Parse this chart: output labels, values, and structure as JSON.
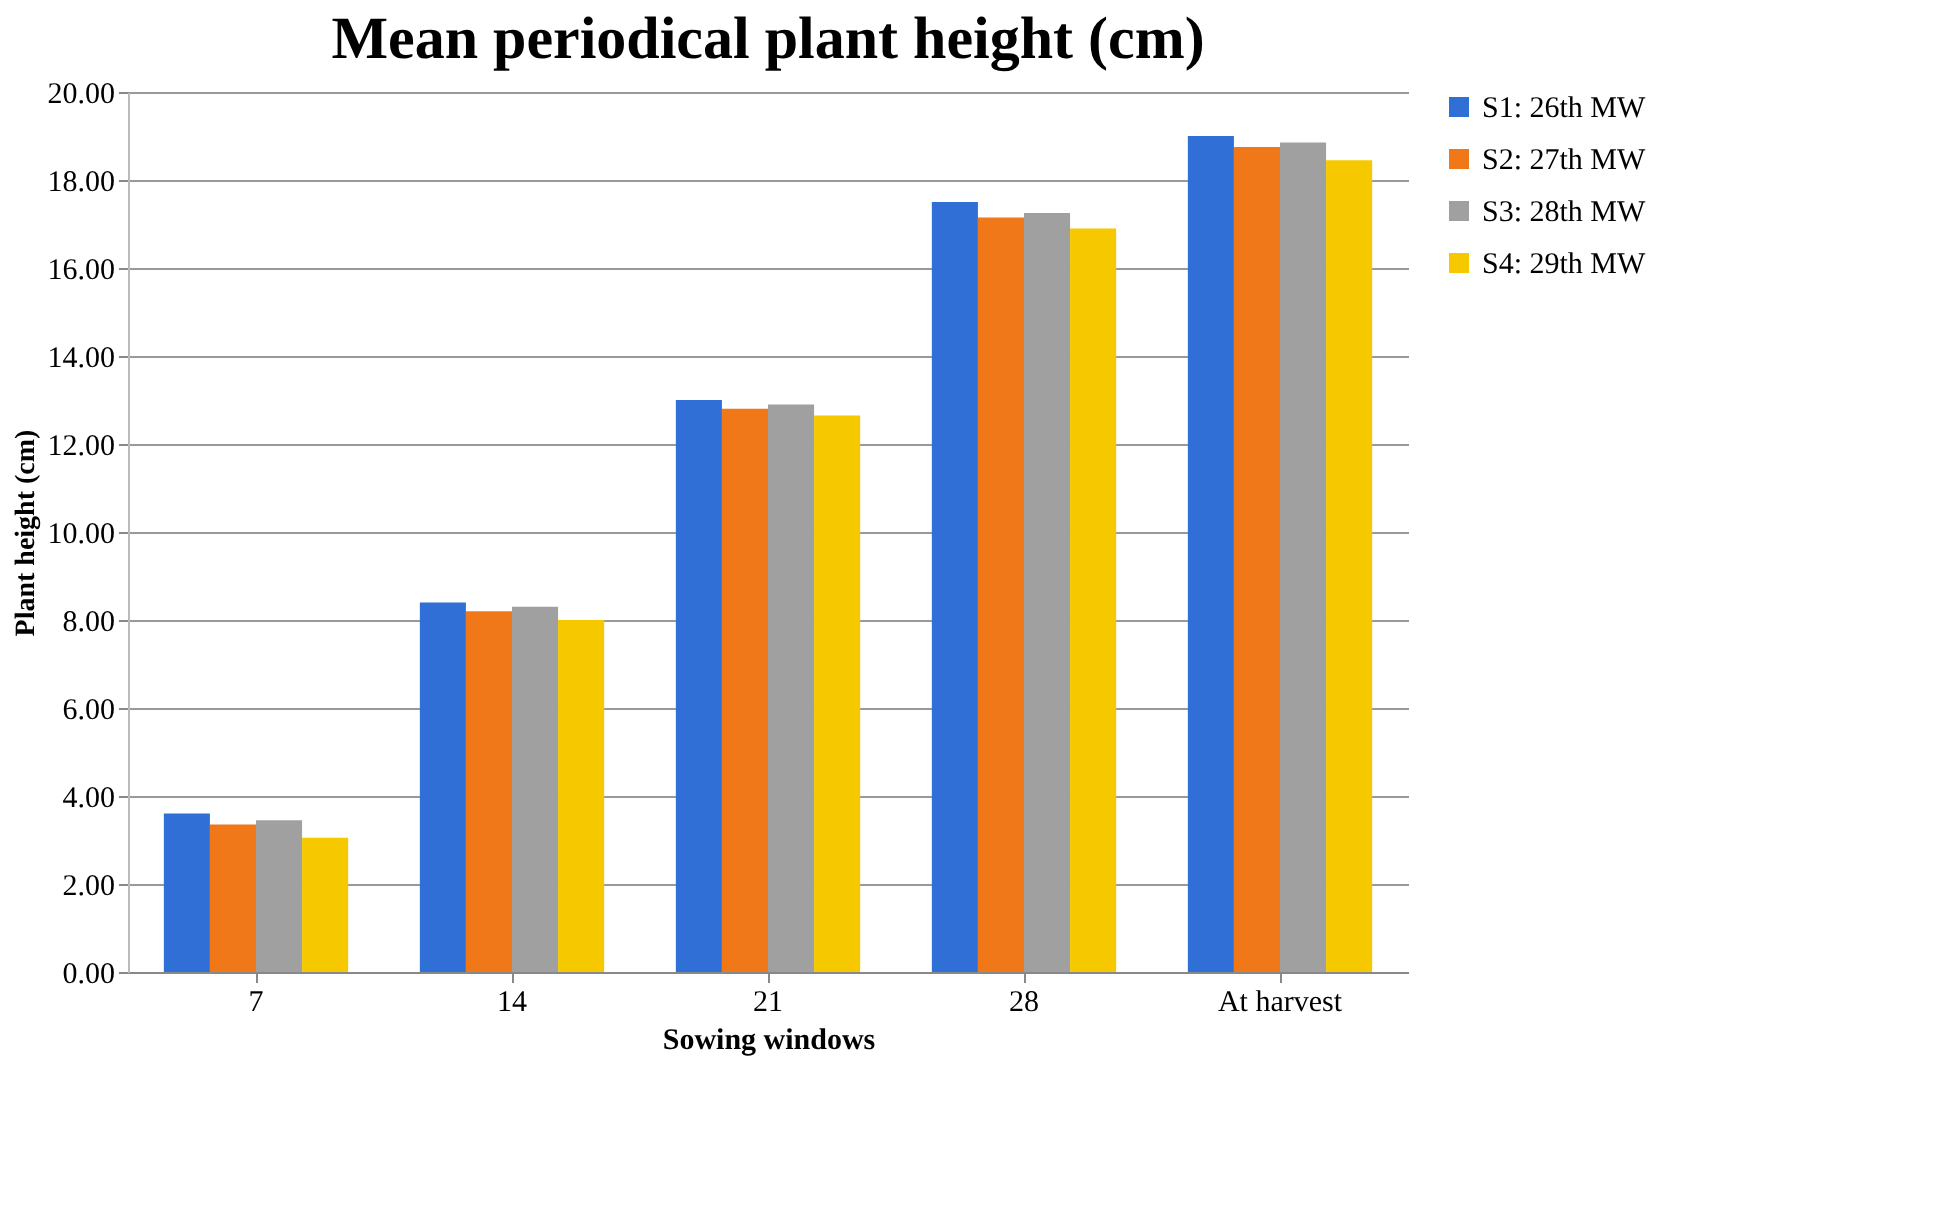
{
  "chart_data": {
    "type": "bar",
    "title": "Mean periodical plant height (cm)",
    "xlabel": "Sowing windows",
    "ylabel": "Plant height (cm)",
    "categories": [
      "7",
      "14",
      "21",
      "28",
      "At harvest"
    ],
    "series": [
      {
        "name": "S1: 26th MW",
        "color": "#2f6fd6",
        "values": [
          3.6,
          8.4,
          13.0,
          17.5,
          19.0
        ]
      },
      {
        "name": "S2: 27th MW",
        "color": "#f07818",
        "values": [
          3.35,
          8.2,
          12.8,
          17.15,
          18.75
        ]
      },
      {
        "name": "S3: 28th MW",
        "color": "#a0a0a0",
        "values": [
          3.45,
          8.3,
          12.9,
          17.25,
          18.85
        ]
      },
      {
        "name": "S4: 29th MW",
        "color": "#f5c800",
        "values": [
          3.05,
          8.0,
          12.65,
          16.9,
          18.45
        ]
      }
    ],
    "ylim": [
      0,
      20
    ],
    "yticks": [
      {
        "value": 0,
        "label": "0.00"
      },
      {
        "value": 2,
        "label": "2.00"
      },
      {
        "value": 4,
        "label": "4.00"
      },
      {
        "value": 6,
        "label": "6.00"
      },
      {
        "value": 8,
        "label": "8.00"
      },
      {
        "value": 10,
        "label": "10.00"
      },
      {
        "value": 12,
        "label": "12.00"
      },
      {
        "value": 14,
        "label": "14.00"
      },
      {
        "value": 16,
        "label": "16.00"
      },
      {
        "value": 18,
        "label": "18.00"
      },
      {
        "value": 20,
        "label": "20.00"
      }
    ],
    "grid": "y",
    "legend": "right"
  }
}
